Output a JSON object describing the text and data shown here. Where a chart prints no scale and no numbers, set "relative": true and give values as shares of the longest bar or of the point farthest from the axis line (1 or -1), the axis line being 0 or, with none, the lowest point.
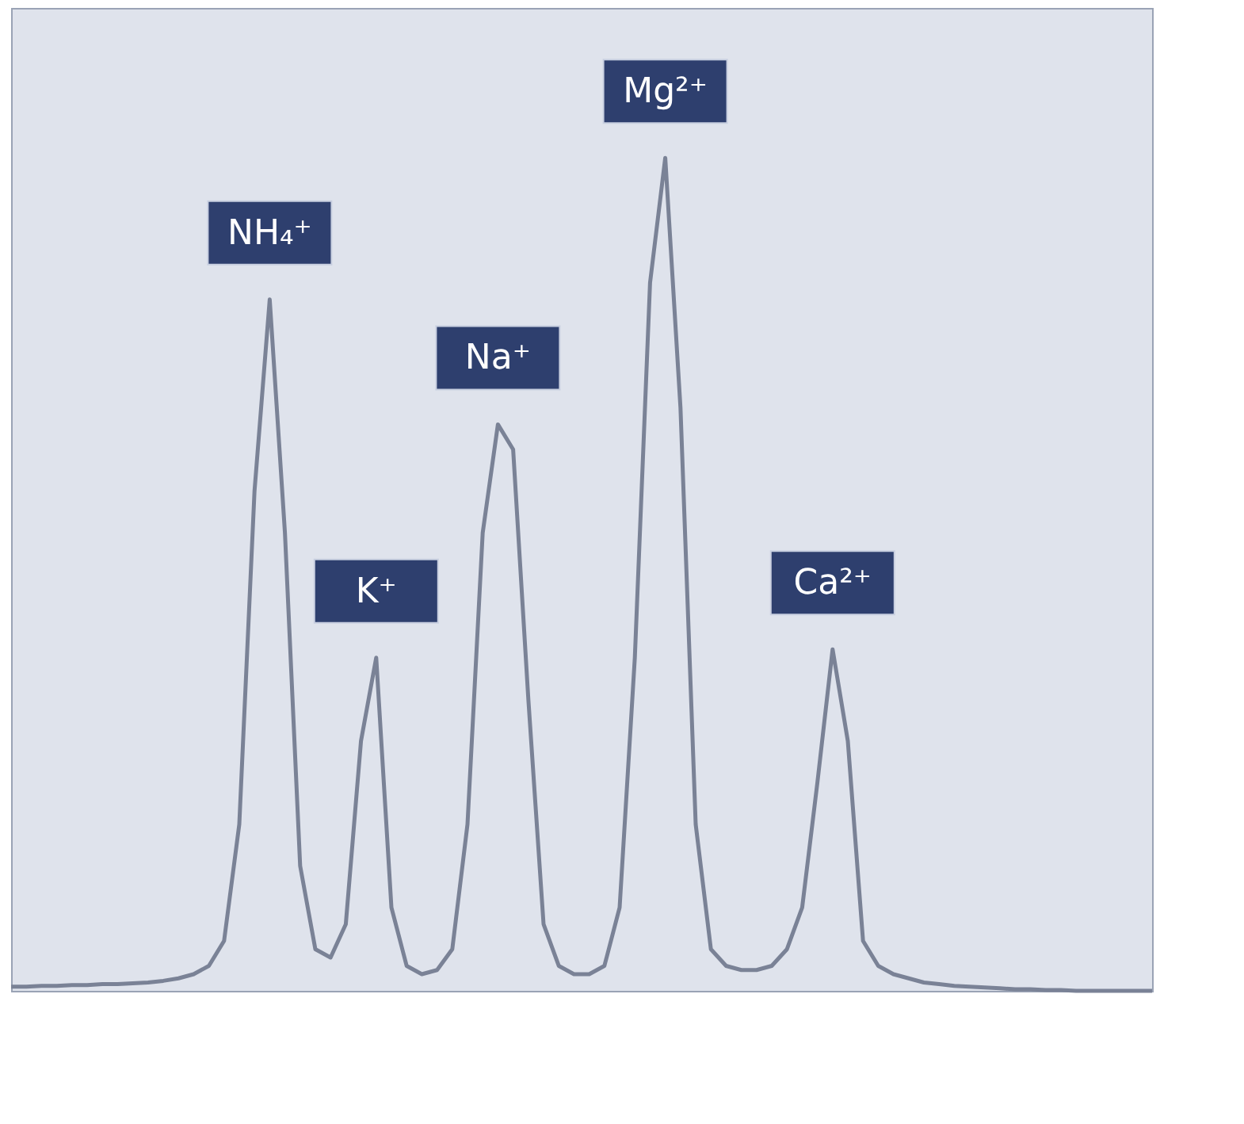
{
  "chart_data": {
    "type": "line",
    "relative": true,
    "color": "#7a8296",
    "categories": [
      null,
      null,
      null,
      null,
      null,
      null,
      null,
      null,
      null,
      null,
      null,
      null,
      null,
      null,
      null,
      null,
      null,
      null,
      null,
      null,
      null,
      null,
      null,
      null,
      null,
      null,
      null,
      null,
      null,
      null,
      null,
      null,
      null,
      null,
      null,
      null,
      null,
      null,
      null,
      null,
      null,
      null,
      null,
      null,
      null,
      null,
      null,
      null,
      null,
      null,
      null,
      null,
      null,
      null,
      null,
      null,
      null,
      null,
      null,
      null,
      null,
      null,
      null,
      null,
      null,
      null,
      null,
      null,
      null,
      null,
      null,
      null,
      null,
      null,
      null,
      null
    ],
    "values": [
      0.005,
      0.005,
      0.006,
      0.006,
      0.007,
      0.007,
      0.008,
      0.008,
      0.009,
      0.01,
      0.012,
      0.015,
      0.02,
      0.03,
      0.06,
      0.2,
      0.6,
      0.83,
      0.55,
      0.15,
      0.05,
      0.04,
      0.08,
      0.3,
      0.4,
      0.1,
      0.03,
      0.02,
      0.025,
      0.05,
      0.2,
      0.55,
      0.68,
      0.65,
      0.35,
      0.08,
      0.03,
      0.02,
      0.02,
      0.03,
      0.1,
      0.4,
      0.85,
      1.0,
      0.7,
      0.2,
      0.05,
      0.03,
      0.025,
      0.025,
      0.03,
      0.05,
      0.1,
      0.25,
      0.41,
      0.3,
      0.06,
      0.03,
      0.02,
      0.015,
      0.01,
      0.008,
      0.006,
      0.005,
      0.004,
      0.003,
      0.002,
      0.002,
      0.001,
      0.001,
      0.0,
      0.0,
      0.0,
      0.0,
      0.0,
      0.0
    ],
    "annotations": [
      "NH₄⁺",
      "K⁺",
      "Na⁺",
      "Mg²⁺",
      "Ca²⁺"
    ]
  }
}
